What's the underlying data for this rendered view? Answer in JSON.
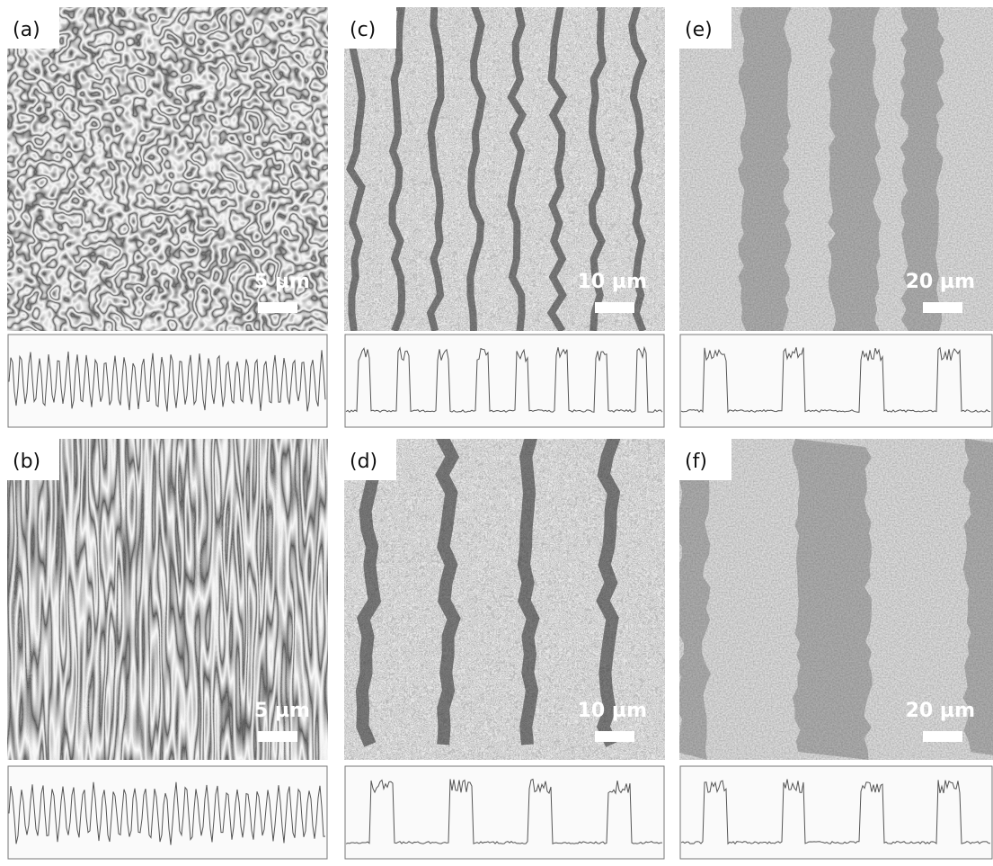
{
  "panels": [
    {
      "label": "(a)",
      "scale_bar": "5 µm"
    },
    {
      "label": "(b)",
      "scale_bar": "5 µm"
    },
    {
      "label": "(c)",
      "scale_bar": "10 µm"
    },
    {
      "label": "(d)",
      "scale_bar": "10 µm"
    },
    {
      "label": "(e)",
      "scale_bar": "20 µm"
    },
    {
      "label": "(f)",
      "scale_bar": "20 µm"
    }
  ]
}
